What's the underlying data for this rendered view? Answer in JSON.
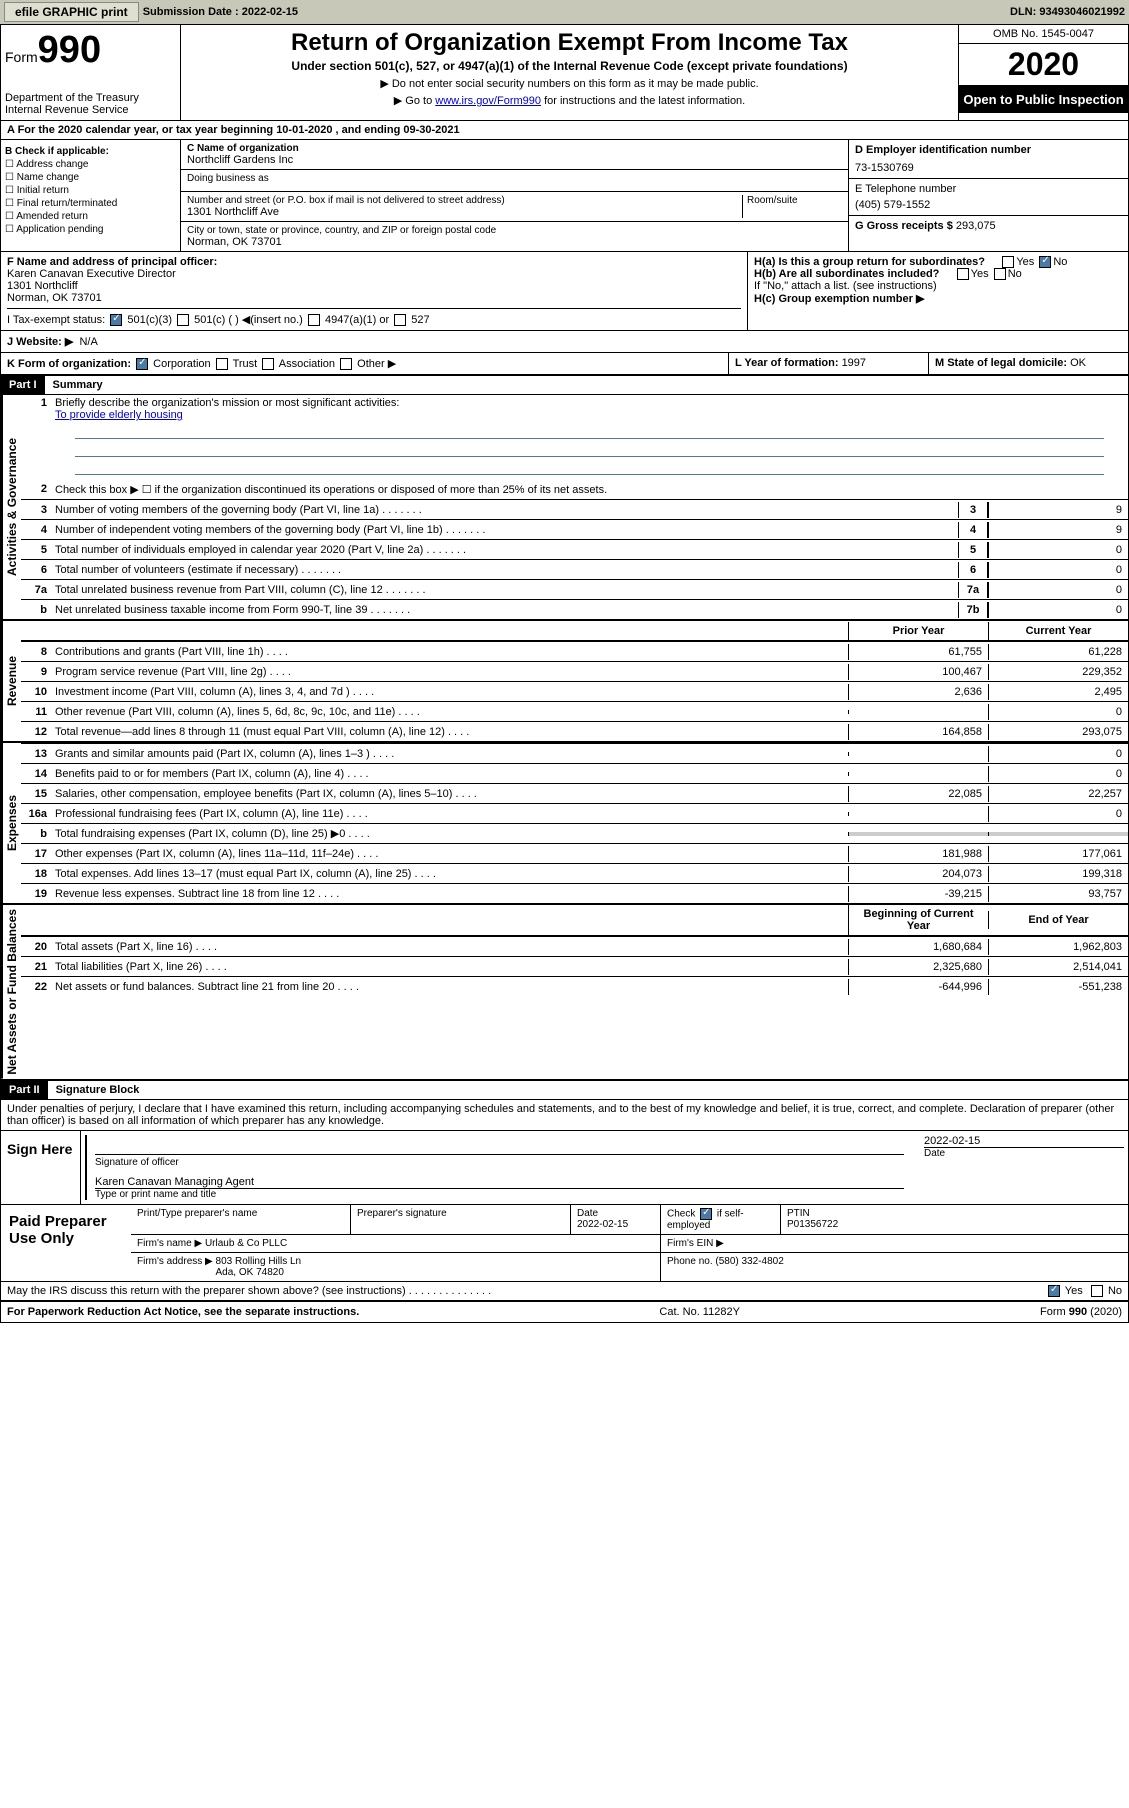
{
  "topbar": {
    "efile": "efile GRAPHIC print",
    "submission_label": "Submission Date : ",
    "submission_date": "2022-02-15",
    "dln": "DLN: 93493046021992"
  },
  "header": {
    "form_label": "Form",
    "form_number": "990",
    "dept": "Department of the Treasury\nInternal Revenue Service",
    "title": "Return of Organization Exempt From Income Tax",
    "subtitle": "Under section 501(c), 527, or 4947(a)(1) of the Internal Revenue Code (except private foundations)",
    "note1": "▶ Do not enter social security numbers on this form as it may be made public.",
    "note2_pre": "▶ Go to ",
    "note2_link": "www.irs.gov/Form990",
    "note2_post": " for instructions and the latest information.",
    "omb": "OMB No. 1545-0047",
    "year": "2020",
    "inspect": "Open to Public Inspection"
  },
  "period": "A For the 2020 calendar year, or tax year beginning 10-01-2020    , and ending 09-30-2021",
  "section_b": {
    "b_label": "B Check if applicable:",
    "items": [
      "Address change",
      "Name change",
      "Initial return",
      "Final return/terminated",
      "Amended return",
      "Application pending"
    ],
    "c_label": "C Name of organization",
    "org_name": "Northcliff Gardens Inc",
    "dba_label": "Doing business as",
    "street_label": "Number and street (or P.O. box if mail is not delivered to street address)",
    "room_label": "Room/suite",
    "street": "1301 Northcliff Ave",
    "city_label": "City or town, state or province, country, and ZIP or foreign postal code",
    "city": "Norman, OK  73701",
    "d_label": "D Employer identification number",
    "ein": "73-1530769",
    "e_label": "E Telephone number",
    "phone": "(405) 579-1552",
    "g_label": "G Gross receipts $ ",
    "gross": "293,075"
  },
  "section_f": {
    "f_label": "F  Name and address of principal officer:",
    "officer": "Karen Canavan Executive Director\n1301 Northcliff\nNorman, OK  73701",
    "ha_label": "H(a)  Is this a group return for subordinates?",
    "hb_label": "H(b)  Are all subordinates included?",
    "hb_note": "If \"No,\" attach a list. (see instructions)",
    "hc_label": "H(c)  Group exemption number ▶",
    "yes": "Yes",
    "no": "No"
  },
  "section_i": {
    "label": "I   Tax-exempt status:",
    "opt1": "501(c)(3)",
    "opt2": "501(c) (  ) ◀(insert no.)",
    "opt3": "4947(a)(1) or",
    "opt4": "527"
  },
  "section_j": {
    "label": "J   Website: ▶",
    "value": "N/A"
  },
  "section_k": {
    "label": "K Form of organization:",
    "corp": "Corporation",
    "trust": "Trust",
    "assoc": "Association",
    "other": "Other ▶",
    "l_label": "L Year of formation: ",
    "l_val": "1997",
    "m_label": "M State of legal domicile: ",
    "m_val": "OK"
  },
  "part1": {
    "header": "Part I",
    "title": "Summary",
    "line1": "Briefly describe the organization's mission or most significant activities:",
    "mission": "To provide elderly housing",
    "line2": "Check this box ▶ ☐  if the organization discontinued its operations or disposed of more than 25% of its net assets.",
    "gov_label": "Activities & Governance",
    "rev_label": "Revenue",
    "exp_label": "Expenses",
    "net_label": "Net Assets or Fund Balances",
    "lines_gov": [
      {
        "n": "3",
        "t": "Number of voting members of the governing body (Part VI, line 1a)",
        "b": "3",
        "v": "9"
      },
      {
        "n": "4",
        "t": "Number of independent voting members of the governing body (Part VI, line 1b)",
        "b": "4",
        "v": "9"
      },
      {
        "n": "5",
        "t": "Total number of individuals employed in calendar year 2020 (Part V, line 2a)",
        "b": "5",
        "v": "0"
      },
      {
        "n": "6",
        "t": "Total number of volunteers (estimate if necessary)",
        "b": "6",
        "v": "0"
      },
      {
        "n": "7a",
        "t": "Total unrelated business revenue from Part VIII, column (C), line 12",
        "b": "7a",
        "v": "0"
      },
      {
        "n": "b",
        "t": "Net unrelated business taxable income from Form 990-T, line 39",
        "b": "7b",
        "v": "0"
      }
    ],
    "col_prior": "Prior Year",
    "col_current": "Current Year",
    "lines_rev": [
      {
        "n": "8",
        "t": "Contributions and grants (Part VIII, line 1h)",
        "p": "61,755",
        "c": "61,228"
      },
      {
        "n": "9",
        "t": "Program service revenue (Part VIII, line 2g)",
        "p": "100,467",
        "c": "229,352"
      },
      {
        "n": "10",
        "t": "Investment income (Part VIII, column (A), lines 3, 4, and 7d )",
        "p": "2,636",
        "c": "2,495"
      },
      {
        "n": "11",
        "t": "Other revenue (Part VIII, column (A), lines 5, 6d, 8c, 9c, 10c, and 11e)",
        "p": "",
        "c": "0"
      },
      {
        "n": "12",
        "t": "Total revenue—add lines 8 through 11 (must equal Part VIII, column (A), line 12)",
        "p": "164,858",
        "c": "293,075"
      }
    ],
    "lines_exp": [
      {
        "n": "13",
        "t": "Grants and similar amounts paid (Part IX, column (A), lines 1–3 )",
        "p": "",
        "c": "0"
      },
      {
        "n": "14",
        "t": "Benefits paid to or for members (Part IX, column (A), line 4)",
        "p": "",
        "c": "0"
      },
      {
        "n": "15",
        "t": "Salaries, other compensation, employee benefits (Part IX, column (A), lines 5–10)",
        "p": "22,085",
        "c": "22,257"
      },
      {
        "n": "16a",
        "t": "Professional fundraising fees (Part IX, column (A), line 11e)",
        "p": "",
        "c": "0"
      },
      {
        "n": "b",
        "t": "Total fundraising expenses (Part IX, column (D), line 25) ▶0",
        "p": "gray",
        "c": "gray"
      },
      {
        "n": "17",
        "t": "Other expenses (Part IX, column (A), lines 11a–11d, 11f–24e)",
        "p": "181,988",
        "c": "177,061"
      },
      {
        "n": "18",
        "t": "Total expenses. Add lines 13–17 (must equal Part IX, column (A), line 25)",
        "p": "204,073",
        "c": "199,318"
      },
      {
        "n": "19",
        "t": "Revenue less expenses. Subtract line 18 from line 12",
        "p": "-39,215",
        "c": "93,757"
      }
    ],
    "col_begin": "Beginning of Current Year",
    "col_end": "End of Year",
    "lines_net": [
      {
        "n": "20",
        "t": "Total assets (Part X, line 16)",
        "p": "1,680,684",
        "c": "1,962,803"
      },
      {
        "n": "21",
        "t": "Total liabilities (Part X, line 26)",
        "p": "2,325,680",
        "c": "2,514,041"
      },
      {
        "n": "22",
        "t": "Net assets or fund balances. Subtract line 21 from line 20",
        "p": "-644,996",
        "c": "-551,238"
      }
    ]
  },
  "part2": {
    "header": "Part II",
    "title": "Signature Block",
    "declaration": "Under penalties of perjury, I declare that I have examined this return, including accompanying schedules and statements, and to the best of my knowledge and belief, it is true, correct, and complete. Declaration of preparer (other than officer) is based on all information of which preparer has any knowledge.",
    "sign_here": "Sign Here",
    "sig_officer": "Signature of officer",
    "sig_date": "Date",
    "sig_date_val": "2022-02-15",
    "sig_name": "Karen Canavan  Managing Agent",
    "sig_name_label": "Type or print name and title",
    "paid": "Paid Preparer Use Only",
    "prep_name_label": "Print/Type preparer's name",
    "prep_sig_label": "Preparer's signature",
    "prep_date_label": "Date",
    "prep_date": "2022-02-15",
    "prep_check": "Check ☑ if self-employed",
    "ptin_label": "PTIN",
    "ptin": "P01356722",
    "firm_name_label": "Firm's name    ▶",
    "firm_name": "Urlaub & Co PLLC",
    "firm_ein_label": "Firm's EIN ▶",
    "firm_addr_label": "Firm's address ▶",
    "firm_addr": "803 Rolling Hills Ln\nAda, OK  74820",
    "firm_phone_label": "Phone no. ",
    "firm_phone": "(580) 332-4802",
    "discuss": "May the IRS discuss this return with the preparer shown above? (see instructions)",
    "yes": "Yes",
    "no": "No"
  },
  "footer": {
    "left": "For Paperwork Reduction Act Notice, see the separate instructions.",
    "mid": "Cat. No. 11282Y",
    "right": "Form 990 (2020)"
  }
}
